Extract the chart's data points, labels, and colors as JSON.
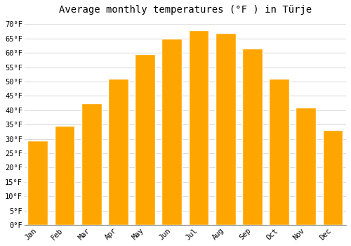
{
  "title": "Average monthly temperatures (°F ) in Türje",
  "months": [
    "Jan",
    "Feb",
    "Mar",
    "Apr",
    "May",
    "Jun",
    "Jul",
    "Aug",
    "Sep",
    "Oct",
    "Nov",
    "Dec"
  ],
  "values": [
    29.5,
    34.5,
    42.5,
    51.0,
    59.5,
    65.0,
    68.0,
    67.0,
    61.5,
    51.0,
    41.0,
    33.0
  ],
  "bar_color": "#FFA500",
  "bar_edge_color": "#FFFFFF",
  "background_color": "#FFFFFF",
  "grid_color": "#DDDDDD",
  "ylim": [
    0,
    72
  ],
  "yticks": [
    0,
    5,
    10,
    15,
    20,
    25,
    30,
    35,
    40,
    45,
    50,
    55,
    60,
    65,
    70
  ],
  "title_fontsize": 10,
  "tick_fontsize": 7.5
}
